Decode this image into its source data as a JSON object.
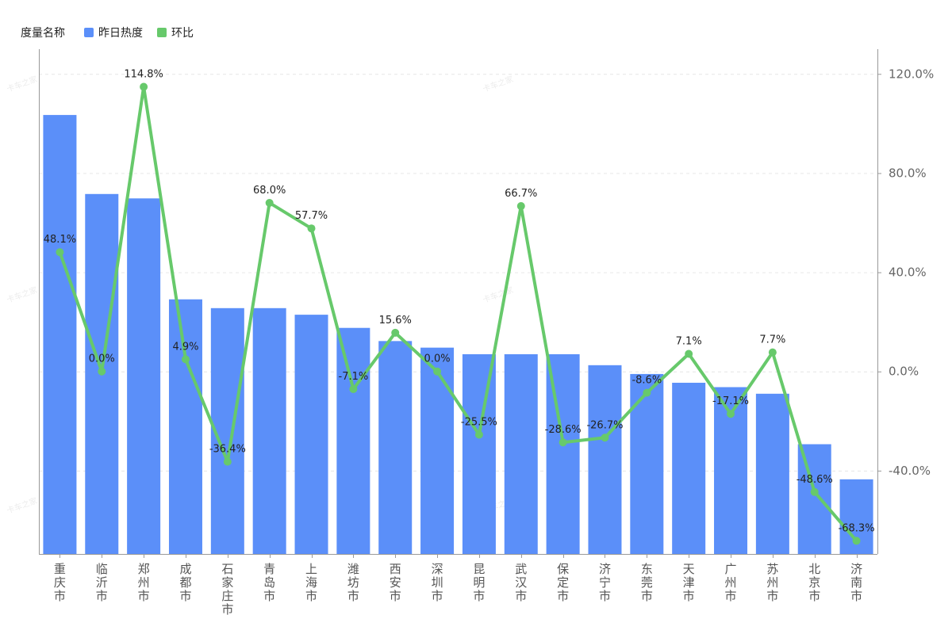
{
  "legend": {
    "title": "度量名称",
    "bar_label": "昨日热度",
    "line_label": "环比"
  },
  "watermark": "卡车之家",
  "colors": {
    "bar": "#5b8ff9",
    "line": "#67c96b",
    "grid": "#e6e6e6",
    "axis": "#999999"
  },
  "chart_data": {
    "type": "bar",
    "categories": [
      "重庆市",
      "临沂市",
      "郑州市",
      "成都市",
      "石家庄市",
      "青岛市",
      "上海市",
      "潍坊市",
      "西安市",
      "深圳市",
      "昆明市",
      "武汉市",
      "保定市",
      "济宁市",
      "东莞市",
      "天津市",
      "广州市",
      "苏州市",
      "北京市",
      "济南市"
    ],
    "series": [
      {
        "name": "昨日热度",
        "type": "bar",
        "axis": "left",
        "values": [
          100,
          82,
          81,
          58,
          56,
          56,
          54.5,
          51.5,
          48.5,
          47,
          45.5,
          45.5,
          45.5,
          43,
          41,
          39,
          38,
          36.5,
          25,
          17
        ]
      },
      {
        "name": "环比",
        "type": "line",
        "axis": "right",
        "values": [
          48.1,
          0.0,
          114.8,
          4.9,
          -36.4,
          68.0,
          57.7,
          -7.1,
          15.6,
          0.0,
          -25.5,
          66.7,
          -28.6,
          -26.7,
          -8.6,
          7.1,
          -17.1,
          7.7,
          -48.6,
          -68.3
        ],
        "labels": [
          "48.1%",
          "0.0%",
          "114.8%",
          "4.9%",
          "-36.4%",
          "68.0%",
          "57.7%",
          "-7.1%",
          "15.6%",
          "0.0%",
          "-25.5%",
          "66.7%",
          "-28.6%",
          "-26.7%",
          "-8.6%",
          "7.1%",
          "-17.1%",
          "7.7%",
          "-48.6%",
          "-68.3%"
        ]
      }
    ],
    "left_axis": {
      "ylim": [
        0,
        115
      ],
      "show_labels": false
    },
    "right_axis": {
      "ylim": [
        -73.6,
        130
      ],
      "ticks": [
        120,
        80,
        40,
        0,
        -40
      ],
      "tick_labels": [
        "120.0%",
        "80.0%",
        "40.0%",
        "0.0%",
        "-40.0%"
      ]
    },
    "grid": true,
    "legend_position": "top-left"
  }
}
